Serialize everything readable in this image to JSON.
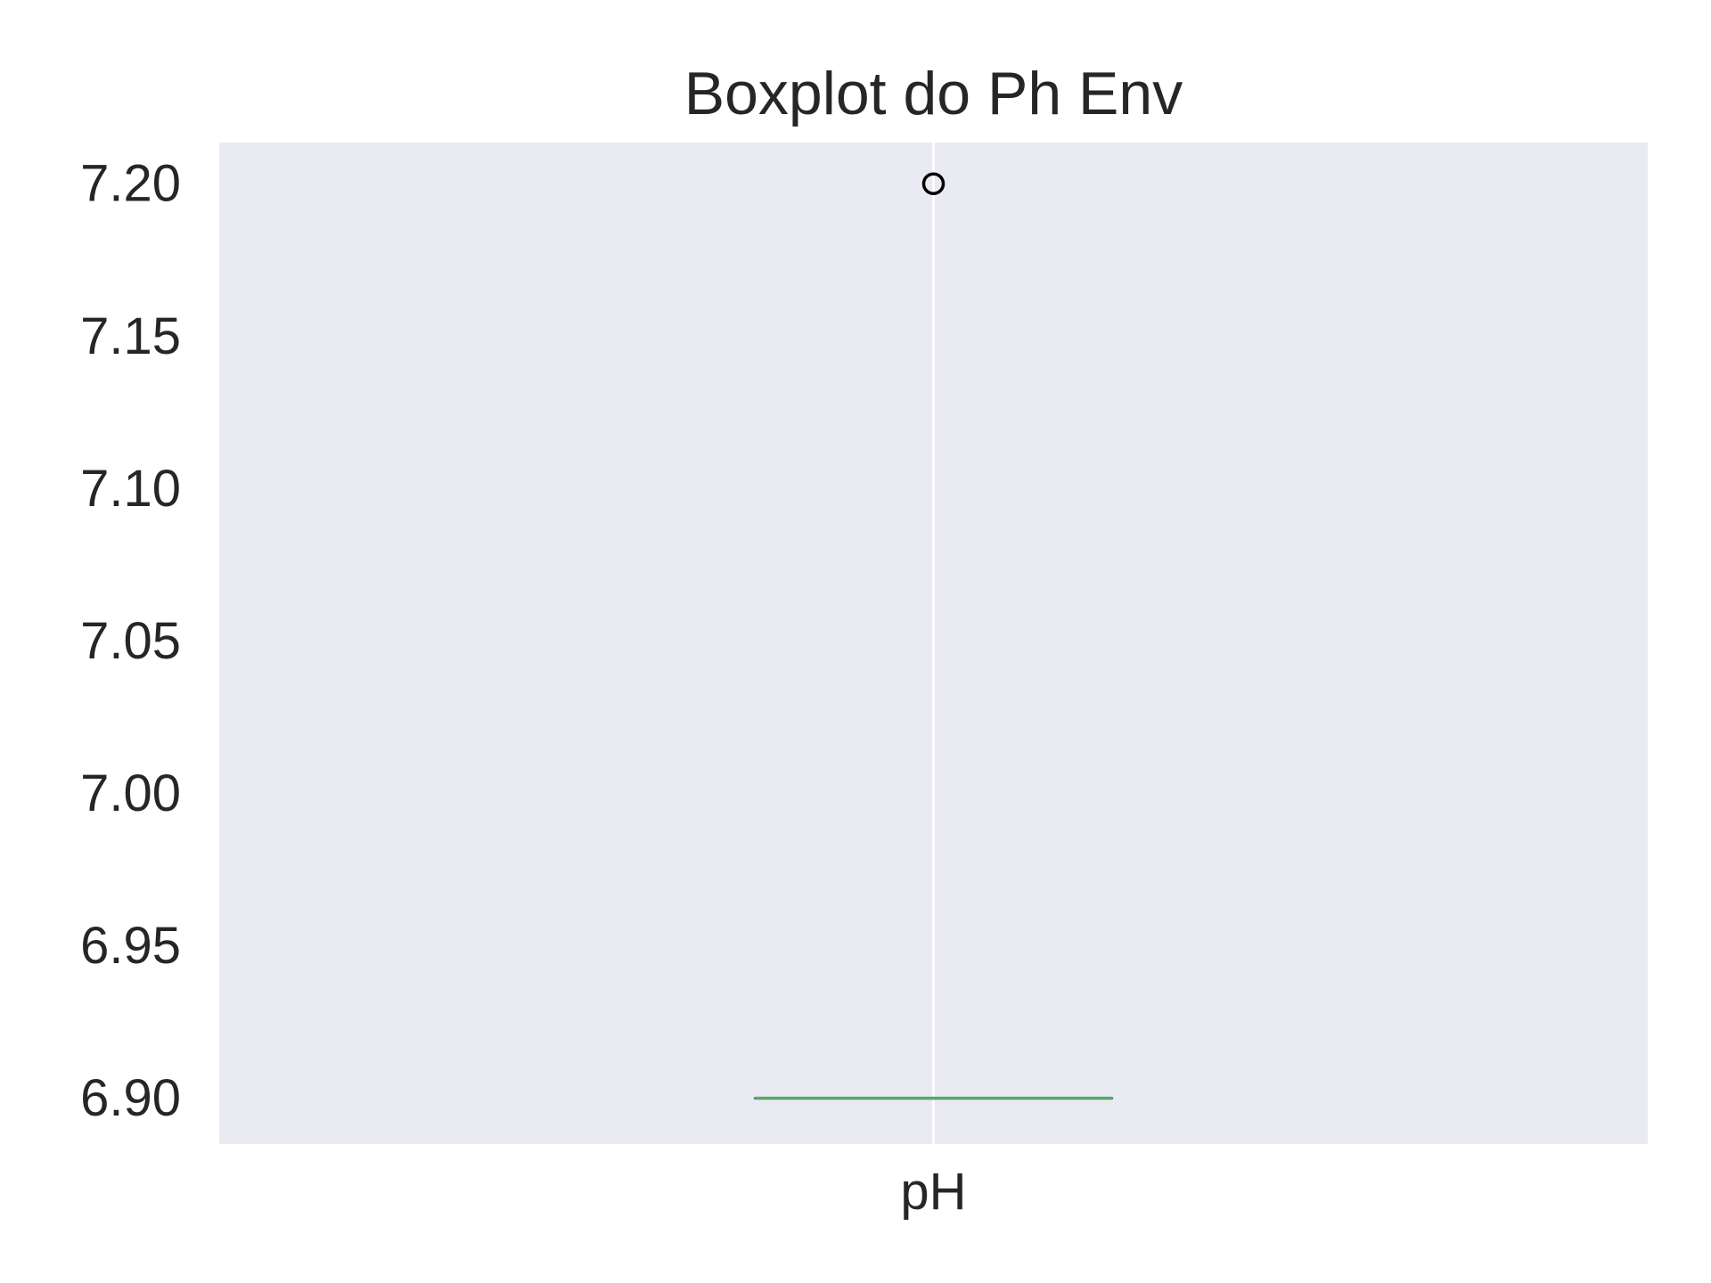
{
  "chart_data": {
    "type": "box",
    "title": "Boxplot do Ph Env",
    "xlabel": "",
    "ylabel": "",
    "categories": [
      "pH"
    ],
    "boxes": [
      {
        "label": "pH",
        "whislo": 6.9,
        "q1": 6.9,
        "median": 6.9,
        "q3": 6.9,
        "whishi": 6.9,
        "fliers": [
          7.2
        ]
      }
    ],
    "ylim": [
      6.885,
      7.2135
    ],
    "yticks": [
      6.9,
      6.95,
      7.0,
      7.05,
      7.1,
      7.15,
      7.2
    ],
    "ytick_labels": [
      "6.90",
      "6.95",
      "7.00",
      "7.05",
      "7.10",
      "7.15",
      "7.20"
    ],
    "grid": true,
    "legend": "none"
  },
  "colors": {
    "plot_background": "#eaeaf2",
    "grid": "#ffffff",
    "median": "#55a868",
    "box_edge": "#4c72b0",
    "flier_edge": "#000000",
    "text": "#262626"
  }
}
